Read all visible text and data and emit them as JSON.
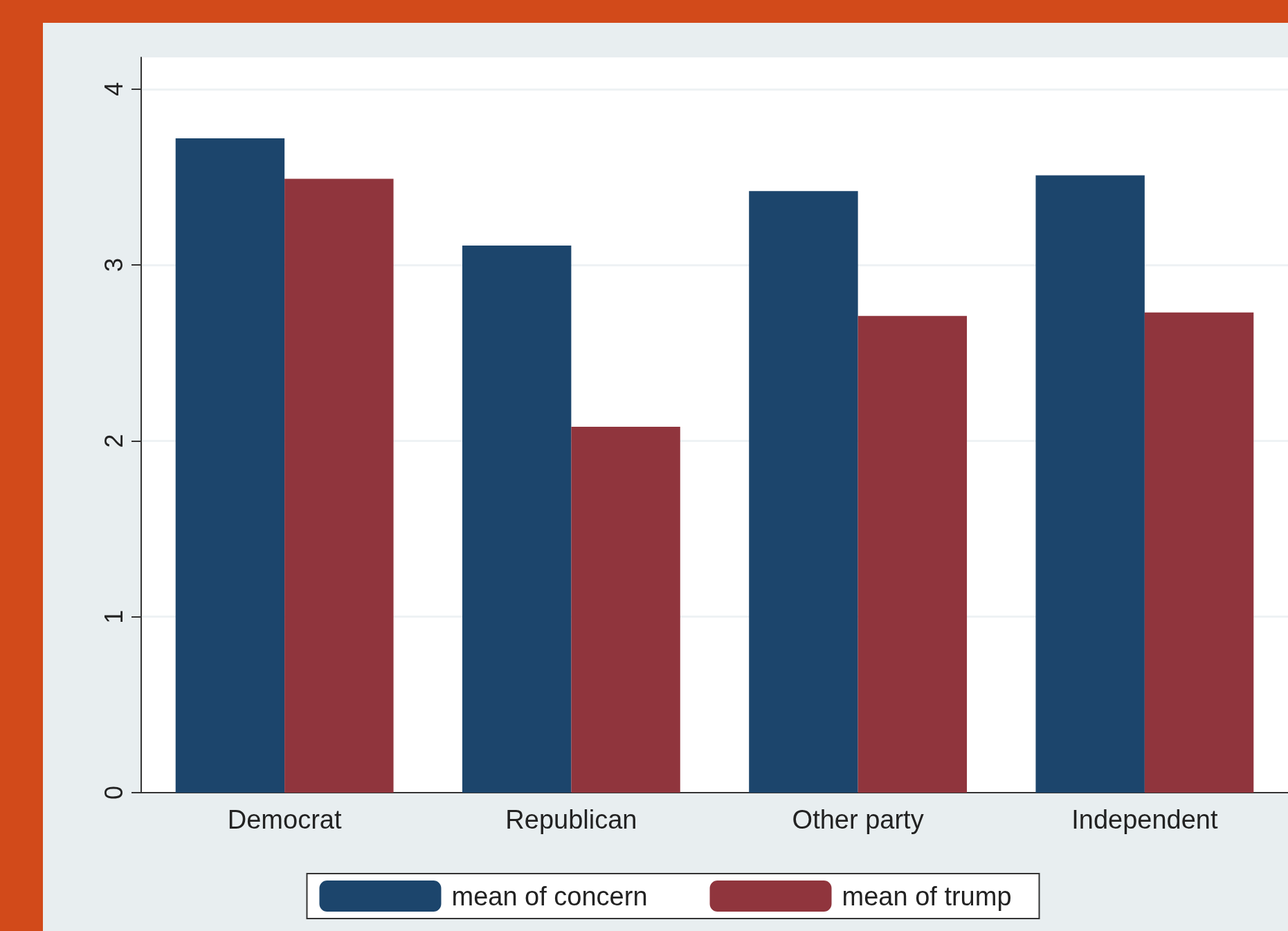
{
  "chart_data": {
    "type": "bar",
    "categories": [
      "Democrat",
      "Republican",
      "Other party",
      "Independent"
    ],
    "series": [
      {
        "name": "mean of concern",
        "color": "#1c456c",
        "values": [
          3.72,
          3.11,
          3.42,
          3.51
        ]
      },
      {
        "name": "mean of trump",
        "color": "#90353d",
        "values": [
          3.49,
          2.08,
          2.71,
          2.73
        ]
      }
    ],
    "ylim": [
      0,
      4.18
    ],
    "yticks": [
      0,
      1,
      2,
      3,
      4
    ],
    "grid": "y",
    "legend": "bottom"
  }
}
